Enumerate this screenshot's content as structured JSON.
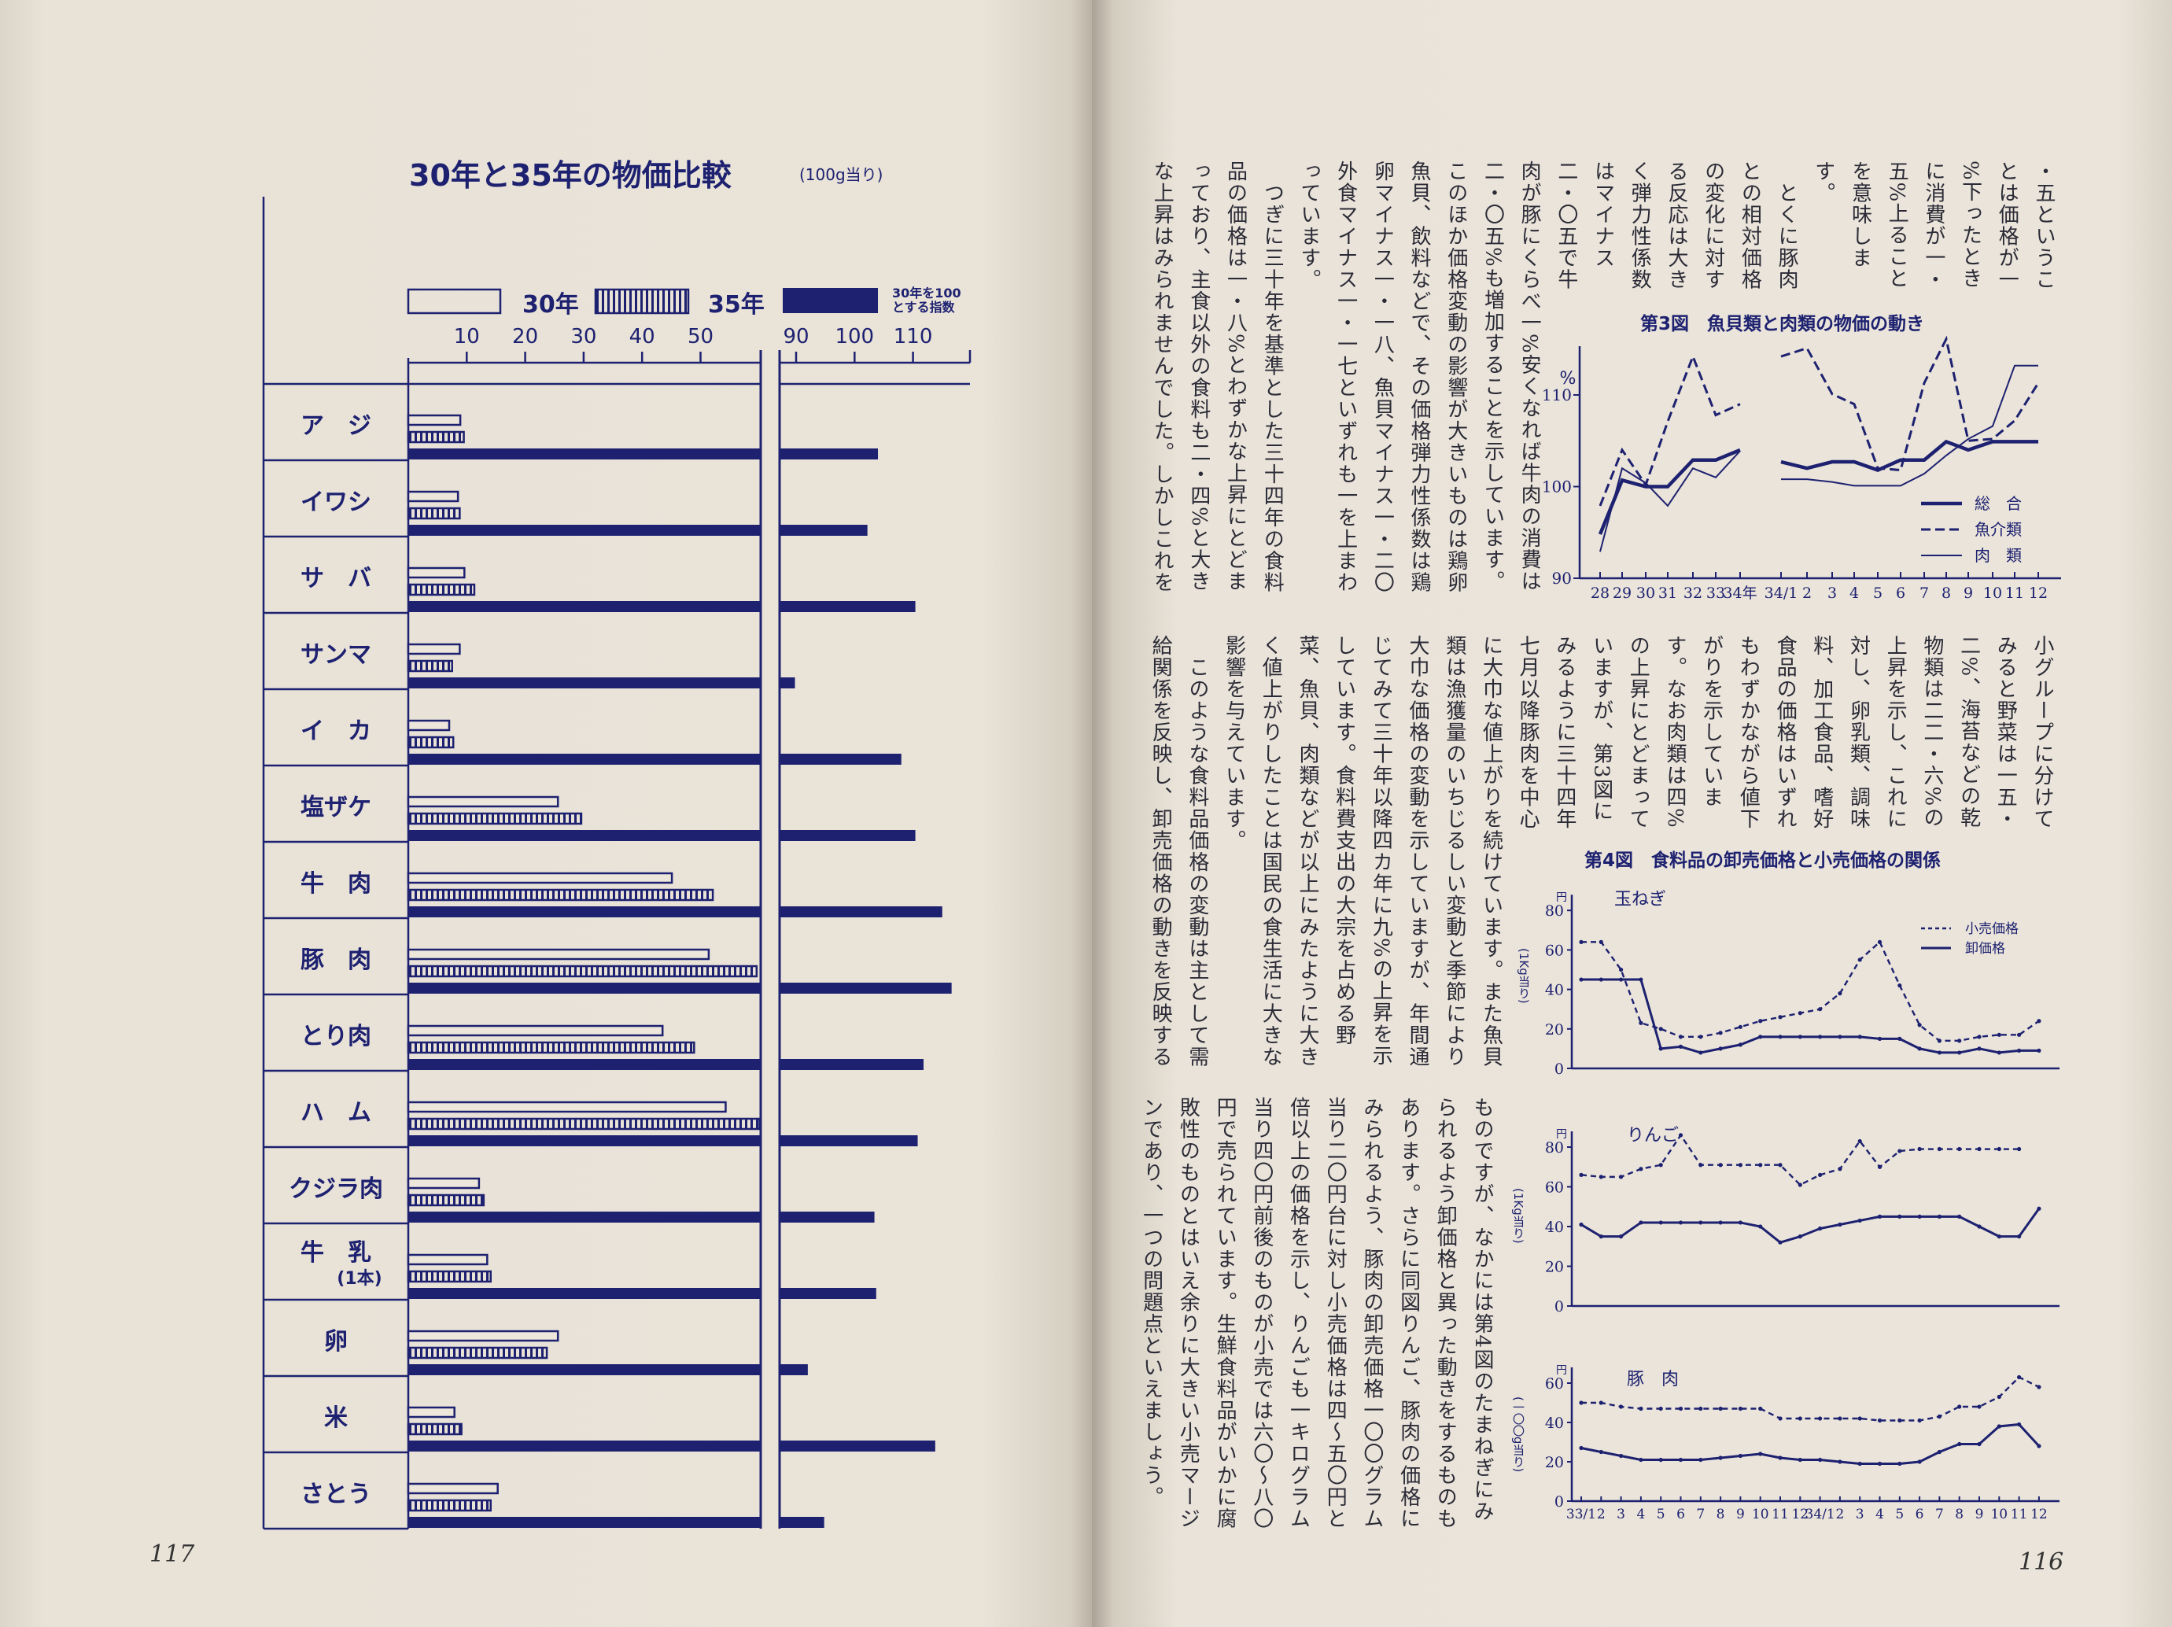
{
  "colors": {
    "ink": "#1d2170",
    "text": "#2b2b37",
    "paper": "#e9e3d8"
  },
  "left_page": {
    "page_number": "117",
    "legend_note_lines": [
      "30年を100",
      "とする指数"
    ]
  },
  "right_page": {
    "page_number": "116",
    "text_blocks": [
      {
        "lines": [
          "・五というこ",
          "とは価格が一",
          "%下ったとき",
          "に消費が一・",
          "五%上ること",
          "を意味しま",
          "す。",
          "　とくに豚肉",
          "との相対価格",
          "の変化に対す",
          "る反応は大き",
          "く弾力性係数",
          "はマイナス",
          "二・〇五で牛",
          "肉が豚にくらべ一%安くなれば牛肉の消費は",
          "二・〇五%も増加することを示しています。",
          "このほか価格変動の影響が大きいものは鶏卵",
          "魚貝、飲料などで、その価格弾力性係数は鶏",
          "卵マイナス一・一八、魚貝マイナス一・二〇",
          "外食マイナス一・一七といずれも一を上まわ",
          "っています。",
          "　つぎに三十年を基準とした三十四年の食料",
          "品の価格は一・八%とわずかな上昇にとどま",
          "っており、主食以外の食料も二・四%と大き",
          "な上昇はみられませんでした。しかしこれを"
        ]
      },
      {
        "lines": [
          "小グループに分けて",
          "みると野菜は一五・",
          "二%、海苔などの乾",
          "物類は二二・六%の",
          "上昇を示し、これに",
          "対し、卵乳類、調味",
          "料、加工食品、嗜好",
          "食品の価格はいずれ",
          "もわずかながら値下",
          "がりを示していま",
          "す。なお肉類は四%",
          "の上昇にとどまって",
          "いますが、第3図に",
          "みるように三十四年",
          "七月以降豚肉を中心",
          "に大巾な値上がりを続けています。また魚貝",
          "類は漁獲量のいちじるしい変動と季節により",
          "大巾な価格の変動を示していますが、年間通",
          "じてみて三十年以降四カ年に九%の上昇を示",
          "しています。食料費支出の大宗を占める野",
          "菜、魚貝、肉類などが以上にみたように大き",
          "く値上がりしたことは国民の食生活に大きな",
          "影響を与えています。",
          "　このような食料品価格の変動は主として需",
          "給関係を反映し、卸売価格の動きを反映する"
        ]
      },
      {
        "lines": [
          "ものですが、なかには第4図のたまねぎにみ",
          "られるよう卸価格と異った動きをするものも",
          "あります。さらに同図りんご、豚肉の価格に",
          "みられるよう、豚肉の卸売価格一〇〇グラム",
          "当り二〇円台に対し小売価格は四〜五〇円と",
          "倍以上の価格を示し、りんごも一キログラム",
          "当り四〇円前後のものが小売では六〇〜八〇",
          "円で売られています。生鮮食料品がいかに腐",
          "敗性のものとはいえ余りに大きい小売マージ",
          "ンであり、一つの問題点といえましょう。"
        ]
      }
    ]
  },
  "chart_data": [
    {
      "type": "bar",
      "orientation": "horizontal",
      "title": "30年と35年の物価比較",
      "subtitle": "(100g当り)",
      "categories": [
        "ア　ジ",
        "イワシ",
        "サ　バ",
        "サンマ",
        "イ　カ",
        "塩ザケ",
        "牛　肉",
        "豚　肉",
        "とり肉",
        "ハ　ム",
        "クジラ肉",
        "牛　乳",
        "卵",
        "米",
        "さとう"
      ],
      "category_notes": {
        "牛　乳": "(1本)"
      },
      "x_ticks_price": [
        "10",
        "20",
        "30",
        "40",
        "50"
      ],
      "x_ticks_index": [
        "90",
        "100",
        "110"
      ],
      "xlim_price": [
        0,
        60
      ],
      "xlim_index": [
        87,
        120
      ],
      "series": [
        {
          "name": "30年",
          "style": "outline",
          "values": [
            8.9,
            8.5,
            9.6,
            8.8,
            7.0,
            25.6,
            45.1,
            51.4,
            43.5,
            54.3,
            12.1,
            13.5,
            25.6,
            7.9,
            15.3
          ]
        },
        {
          "name": "35年",
          "style": "hatched",
          "values": [
            9.5,
            8.8,
            11.3,
            7.5,
            7.7,
            29.6,
            52.1,
            59.6,
            48.9,
            60.1,
            12.9,
            14.1,
            23.7,
            9.1,
            14.1
          ]
        },
        {
          "name": "30年を100とする指数",
          "style": "solid",
          "values": [
            104.0,
            102.2,
            110.4,
            89.8,
            108.0,
            110.4,
            115.0,
            116.6,
            111.8,
            110.8,
            103.4,
            103.7,
            92.0,
            113.8,
            94.8
          ]
        }
      ],
      "legend": [
        "30年",
        "35年",
        "30年を100とする指数"
      ],
      "grid": false
    },
    {
      "type": "line",
      "title": "第3図　魚貝類と肉類の物価の動き",
      "ylabel": "%",
      "y_ticks": [
        "90",
        "100",
        "110"
      ],
      "ylim": [
        90,
        117
      ],
      "legend": [
        "総　合",
        "魚介類",
        "肉　類"
      ],
      "legend_position": "bottom-right",
      "segments": [
        {
          "x": [
            "28",
            "29",
            "30",
            "31",
            "32",
            "33",
            "34年"
          ],
          "series": [
            {
              "name": "総　合",
              "values": [
                94.8,
                100.7,
                100,
                100,
                102.9,
                102.9,
                104
              ]
            },
            {
              "name": "魚介類",
              "values": [
                97.9,
                104,
                100.2,
                107.1,
                114.2,
                107.8,
                109
              ]
            },
            {
              "name": "肉　類",
              "values": [
                92.9,
                102,
                100.4,
                97.9,
                102,
                101,
                103.9
              ]
            }
          ]
        },
        {
          "x": [
            "34/1",
            "2",
            "3",
            "4",
            "5",
            "6",
            "7",
            "8",
            "9",
            "10",
            "11",
            "12"
          ],
          "series": [
            {
              "name": "総　合",
              "values": [
                102.7,
                102,
                102.7,
                102.7,
                101.8,
                102.9,
                102.9,
                104.9,
                104,
                104.9,
                104.9,
                104.9
              ]
            },
            {
              "name": "魚介類",
              "values": [
                114.2,
                115.1,
                110.1,
                109,
                102,
                101.8,
                111.3,
                116.1,
                105,
                105.2,
                107.2,
                111.3
              ]
            },
            {
              "name": "肉　類",
              "values": [
                100.8,
                100.8,
                100.5,
                100.1,
                100.1,
                100.1,
                101.4,
                103.4,
                105.2,
                106.6,
                113.2,
                113.2
              ]
            }
          ]
        }
      ]
    },
    {
      "type": "line",
      "title": "第4図　食料品の卸売価格と小売価格の関係",
      "x": [
        "33/1",
        "2",
        "3",
        "4",
        "5",
        "6",
        "7",
        "8",
        "9",
        "10",
        "11",
        "12",
        "34/1",
        "2",
        "3",
        "4",
        "5",
        "6",
        "7",
        "8",
        "9",
        "10",
        "11",
        "12"
      ],
      "legend": [
        "小売価格",
        "卸価格"
      ],
      "legend_position": "top-right",
      "y_unit": "円",
      "panels": [
        {
          "name": "玉ねぎ",
          "unit_note": "(1Kg当り)",
          "y_ticks": [
            "0",
            "20",
            "40",
            "60",
            "80"
          ],
          "ylim": [
            0,
            80
          ],
          "series": [
            {
              "name": "小売価格",
              "values": [
                64,
                64,
                50,
                23,
                20,
                16,
                16,
                18,
                21,
                24,
                26,
                28,
                30,
                38,
                55,
                64,
                42,
                22,
                14,
                14,
                16,
                17,
                17,
                24
              ]
            },
            {
              "name": "卸価格",
              "values": [
                45,
                45,
                45,
                45,
                10,
                11,
                8,
                10,
                12,
                16,
                16,
                16,
                16,
                16,
                16,
                15,
                15,
                10,
                8,
                8,
                10,
                8,
                9,
                9
              ]
            }
          ]
        },
        {
          "name": "りんご",
          "unit_note": "(1Kg当り)",
          "y_ticks": [
            "0",
            "20",
            "40",
            "60",
            "80"
          ],
          "ylim": [
            0,
            80
          ],
          "series": [
            {
              "name": "小売価格",
              "values": [
                66,
                65,
                65,
                69,
                71,
                86,
                71,
                71,
                71,
                71,
                71,
                61,
                66,
                69,
                83,
                70,
                78,
                79,
                79,
                79,
                79,
                79,
                79,
                null
              ]
            },
            {
              "name": "卸価格",
              "values": [
                41,
                35,
                35,
                42,
                42,
                42,
                42,
                42,
                42,
                40,
                32,
                35,
                39,
                41,
                43,
                45,
                45,
                45,
                45,
                45,
                40,
                35,
                35,
                49
              ]
            }
          ]
        },
        {
          "name": "豚　肉",
          "unit_note": "(一〇〇g当り)",
          "y_ticks": [
            "0",
            "20",
            "40",
            "60"
          ],
          "ylim": [
            0,
            60
          ],
          "series": [
            {
              "name": "小売価格",
              "values": [
                50,
                50,
                48,
                47,
                47,
                47,
                47,
                47,
                47,
                47,
                42,
                42,
                42,
                42,
                42,
                41,
                41,
                41,
                43,
                48,
                48,
                53,
                63,
                58
              ]
            },
            {
              "name": "卸価格",
              "values": [
                27,
                25,
                23,
                21,
                21,
                21,
                21,
                22,
                23,
                24,
                22,
                21,
                21,
                20,
                19,
                19,
                19,
                20,
                25,
                29,
                29,
                38,
                39,
                28
              ]
            }
          ]
        }
      ]
    }
  ]
}
